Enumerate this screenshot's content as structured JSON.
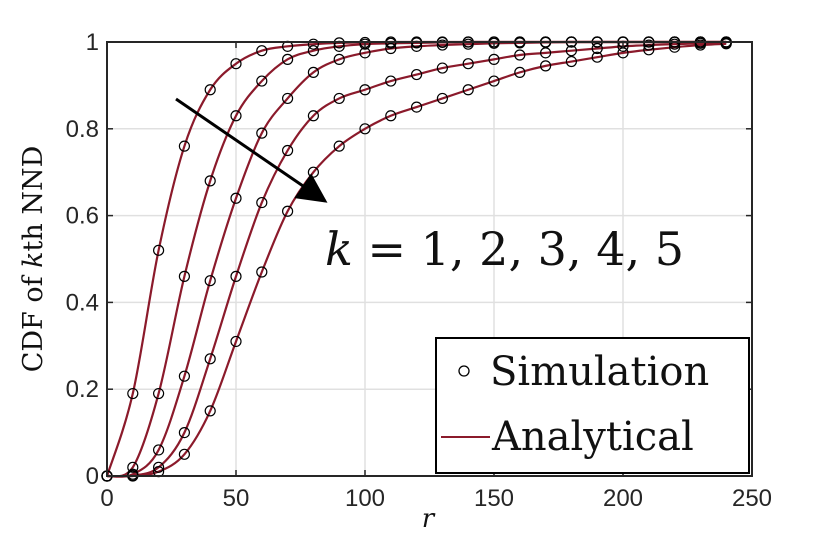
{
  "chart_data": {
    "type": "line",
    "xlabel": "r",
    "ylabel_parts": [
      "CDF of ",
      "k",
      "th NND"
    ],
    "annotation_parts": [
      "k",
      " = 1, 2, 3, 4, 5"
    ],
    "xlim": [
      0,
      250
    ],
    "ylim": [
      0,
      1
    ],
    "xticks": [
      0,
      50,
      100,
      150,
      200,
      250
    ],
    "yticks": [
      0,
      0.2,
      0.4,
      0.6,
      0.8,
      1
    ],
    "ytick_labels": [
      "0",
      "0.2",
      "0.4",
      "0.6",
      "0.8",
      "1"
    ],
    "grid": true,
    "legend_position": "bottom-right",
    "legend": [
      "Simulation",
      "Analytical"
    ],
    "line_color": "#8b1a2b",
    "marker_color": "#000000",
    "x": [
      0,
      10,
      20,
      30,
      40,
      50,
      60,
      70,
      80,
      90,
      100,
      110,
      120,
      130,
      140,
      150,
      160,
      170,
      180,
      190,
      200,
      210,
      220,
      230,
      240
    ],
    "series": [
      {
        "k": 1,
        "values": [
          0,
          0.19,
          0.52,
          0.76,
          0.89,
          0.95,
          0.98,
          0.99,
          0.995,
          0.998,
          0.999,
          1,
          1,
          1,
          1,
          1,
          1,
          1,
          1,
          1,
          1,
          1,
          1,
          1,
          1
        ]
      },
      {
        "k": 2,
        "values": [
          0,
          0.02,
          0.19,
          0.46,
          0.68,
          0.83,
          0.91,
          0.96,
          0.98,
          0.99,
          0.995,
          0.997,
          0.998,
          0.999,
          1,
          1,
          1,
          1,
          1,
          1,
          1,
          1,
          1,
          1,
          1
        ]
      },
      {
        "k": 3,
        "values": [
          0,
          0.004,
          0.06,
          0.23,
          0.45,
          0.64,
          0.79,
          0.87,
          0.93,
          0.96,
          0.975,
          0.985,
          0.99,
          0.993,
          0.995,
          0.997,
          0.998,
          0.999,
          1,
          1,
          1,
          1,
          1,
          1,
          1
        ]
      },
      {
        "k": 4,
        "values": [
          0,
          0.001,
          0.02,
          0.1,
          0.27,
          0.46,
          0.63,
          0.75,
          0.83,
          0.87,
          0.89,
          0.91,
          0.925,
          0.94,
          0.95,
          0.96,
          0.97,
          0.975,
          0.98,
          0.985,
          0.99,
          0.993,
          0.995,
          0.997,
          0.998
        ]
      },
      {
        "k": 5,
        "values": [
          0,
          0,
          0.01,
          0.05,
          0.15,
          0.31,
          0.47,
          0.61,
          0.7,
          0.76,
          0.8,
          0.83,
          0.85,
          0.87,
          0.89,
          0.91,
          0.93,
          0.945,
          0.955,
          0.965,
          0.975,
          0.982,
          0.988,
          0.993,
          0.996
        ]
      }
    ]
  }
}
